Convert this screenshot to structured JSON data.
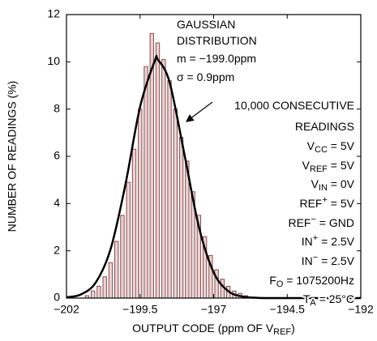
{
  "chart_data": {
    "type": "histogram",
    "ylabel": "NUMBER OF READINGS (%)",
    "xlabel": [
      {
        "text": "OUTPUT CODE (ppm OF V"
      },
      {
        "sub": "REF"
      },
      {
        "text": ")"
      }
    ],
    "bins": [
      -201.4,
      -201.2,
      -201.0,
      -200.8,
      -200.6,
      -200.4,
      -200.2,
      -200.0,
      -199.8,
      -199.6,
      -199.4,
      -199.2,
      -199.0,
      -198.8,
      -198.6,
      -198.4,
      -198.2,
      -198.0,
      -197.8,
      -197.6,
      -197.4,
      -197.2,
      -197.0,
      -196.8,
      -196.6,
      -196.4,
      -196.2,
      -196.0,
      -195.8
    ],
    "values": [
      0.1,
      0.3,
      0.5,
      0.9,
      1.5,
      2.4,
      3.5,
      4.9,
      6.3,
      8.0,
      9.8,
      11.2,
      10.8,
      10.1,
      9.2,
      8.0,
      6.8,
      5.8,
      4.5,
      3.5,
      2.6,
      1.8,
      1.2,
      0.8,
      0.5,
      0.3,
      0.2,
      0.1
    ],
    "color": "#ead4d4",
    "edge_color": "#8a4b4b",
    "curve": {
      "x": [
        -202,
        -201.5,
        -201,
        -200.5,
        -200,
        -199.5,
        -199,
        -198.9,
        -198.5,
        -198,
        -197.5,
        -197,
        -196.5,
        -196,
        -195.5,
        -195,
        -194,
        -193,
        -192
      ],
      "y": [
        0.03,
        0.16,
        0.67,
        2.08,
        4.79,
        8.09,
        10.04,
        10.1,
        9.15,
        6.13,
        3.01,
        1.09,
        0.29,
        0.06,
        0.01,
        0,
        0,
        0,
        0
      ],
      "color": "#000000"
    },
    "xlim": [
      -202,
      -192
    ],
    "xticks": [
      {
        "value": -202,
        "label": "−202"
      },
      {
        "value": -199.5,
        "label": "−199.5"
      },
      {
        "value": -197,
        "label": "−197"
      },
      {
        "value": -194.5,
        "label": "−194.5"
      },
      {
        "value": -192,
        "label": "−192"
      }
    ],
    "ylim": [
      0,
      12
    ],
    "yticks": [
      0,
      2,
      4,
      6,
      8,
      10,
      12
    ],
    "annotations": [
      [
        {
          "text": "GAUSSIAN"
        }
      ],
      [
        {
          "text": "DISTRIBUTION"
        }
      ],
      [
        {
          "text": "m = −199.0ppm"
        }
      ],
      [
        {
          "text": "σ = 0.9ppm"
        }
      ],
      [
        {
          "text": "10,000 CONSECUTIVE"
        }
      ],
      [
        {
          "text": "READINGS"
        }
      ],
      [
        {
          "text": "V"
        },
        {
          "sub": "CC"
        },
        {
          "text": " = 5V"
        }
      ],
      [
        {
          "text": "V"
        },
        {
          "sub": "REF"
        },
        {
          "text": " = 5V"
        }
      ],
      [
        {
          "text": "V"
        },
        {
          "sub": "IN"
        },
        {
          "text": " = 0V"
        }
      ],
      [
        {
          "text": "REF"
        },
        {
          "sup": "+"
        },
        {
          "text": " = 5V"
        }
      ],
      [
        {
          "text": "REF"
        },
        {
          "sup": "−"
        },
        {
          "text": " = GND"
        }
      ],
      [
        {
          "text": "IN"
        },
        {
          "sup": "+"
        },
        {
          "text": " = 2.5V"
        }
      ],
      [
        {
          "text": "IN"
        },
        {
          "sup": "−"
        },
        {
          "text": " = 2.5V"
        }
      ],
      [
        {
          "text": "F"
        },
        {
          "sub": "O"
        },
        {
          "text": " = 1075200Hz"
        }
      ],
      [
        {
          "text": "T"
        },
        {
          "sub": "A"
        },
        {
          "text": " = 25°C"
        }
      ]
    ]
  }
}
